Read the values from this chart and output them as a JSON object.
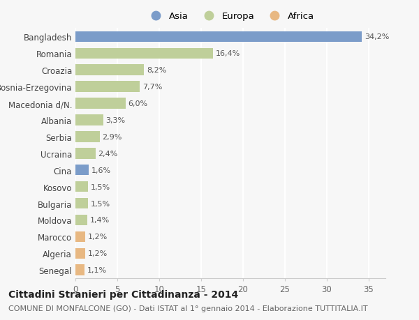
{
  "countries": [
    "Bangladesh",
    "Romania",
    "Croazia",
    "Bosnia-Erzegovina",
    "Macedonia d/N.",
    "Albania",
    "Serbia",
    "Ucraina",
    "Cina",
    "Kosovo",
    "Bulgaria",
    "Moldova",
    "Marocco",
    "Algeria",
    "Senegal"
  ],
  "values": [
    34.2,
    16.4,
    8.2,
    7.7,
    6.0,
    3.3,
    2.9,
    2.4,
    1.6,
    1.5,
    1.5,
    1.4,
    1.2,
    1.2,
    1.1
  ],
  "labels": [
    "34,2%",
    "16,4%",
    "8,2%",
    "7,7%",
    "6,0%",
    "3,3%",
    "2,9%",
    "2,4%",
    "1,6%",
    "1,5%",
    "1,5%",
    "1,4%",
    "1,2%",
    "1,2%",
    "1,1%"
  ],
  "continents": [
    "Asia",
    "Europa",
    "Europa",
    "Europa",
    "Europa",
    "Europa",
    "Europa",
    "Europa",
    "Asia",
    "Europa",
    "Europa",
    "Europa",
    "Africa",
    "Africa",
    "Africa"
  ],
  "colors": {
    "Asia": "#7b9cc9",
    "Europa": "#bfcf9a",
    "Africa": "#e8b882"
  },
  "xlim": [
    0,
    37
  ],
  "xticks": [
    0,
    5,
    10,
    15,
    20,
    25,
    30,
    35
  ],
  "title": "Cittadini Stranieri per Cittadinanza - 2014",
  "subtitle": "COMUNE DI MONFALCONE (GO) - Dati ISTAT al 1° gennaio 2014 - Elaborazione TUTTITALIA.IT",
  "bg_color": "#f7f7f7",
  "plot_bg_color": "#f7f7f7",
  "bar_height": 0.65,
  "title_fontsize": 10,
  "subtitle_fontsize": 8,
  "label_fontsize": 8,
  "tick_fontsize": 8.5,
  "legend_fontsize": 9.5
}
